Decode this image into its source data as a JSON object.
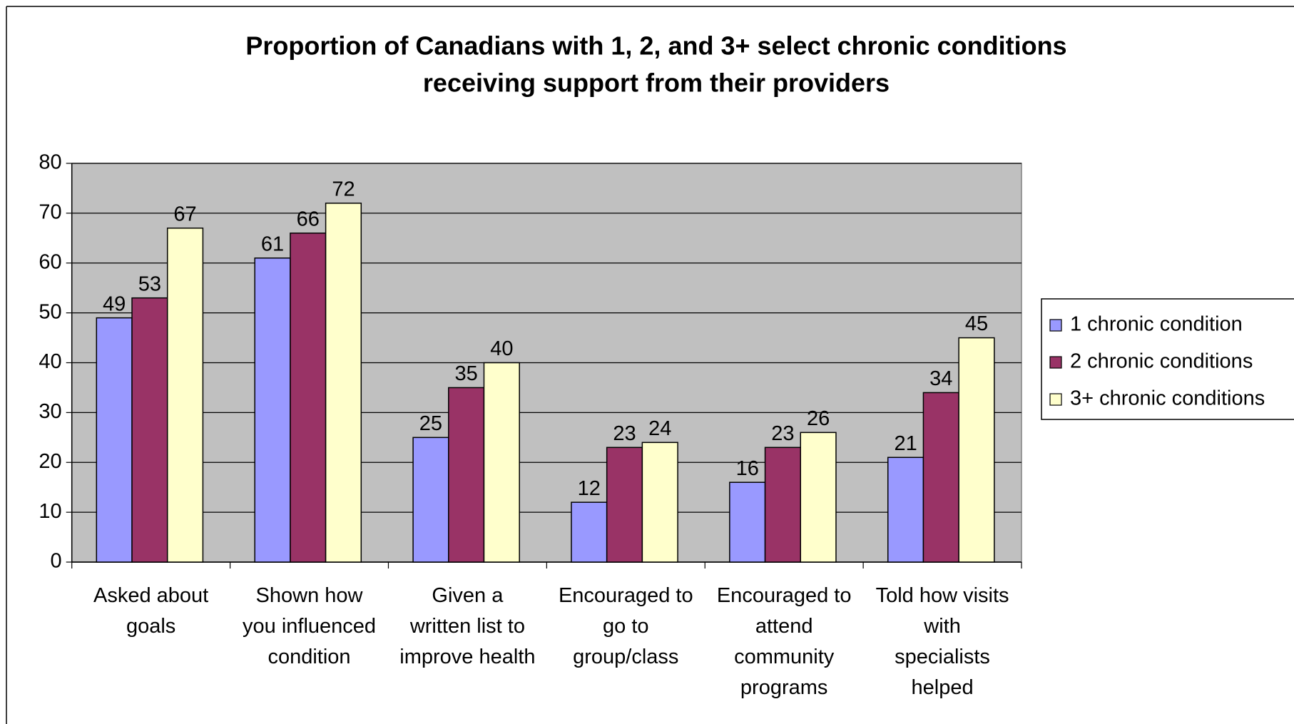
{
  "chart_data": {
    "type": "bar",
    "title": "Proportion of Canadians with 1, 2, and 3+ select chronic conditions",
    "subtitle": "receiving support from their providers",
    "categories": [
      "Asked about\ngoals",
      "Shown how\nyou influenced\ncondition",
      "Given a\nwritten list to\nimprove health",
      "Encouraged to\ngo to\ngroup/class",
      "Encouraged to\nattend\ncommunity\nprograms",
      "Told how visits\nwith\nspecialists\nhelped"
    ],
    "series": [
      {
        "name": "1 chronic condition",
        "color": "#9999ff",
        "values": [
          49,
          61,
          25,
          12,
          16,
          21
        ]
      },
      {
        "name": "2 chronic conditions",
        "color": "#993366",
        "values": [
          53,
          66,
          35,
          23,
          23,
          34
        ]
      },
      {
        "name": "3+ chronic conditions",
        "color": "#ffffcc",
        "values": [
          67,
          72,
          40,
          24,
          26,
          45
        ]
      }
    ],
    "ylim": [
      0,
      80
    ],
    "yticks": [
      0,
      10,
      20,
      30,
      40,
      50,
      60,
      70,
      80
    ],
    "grid": true,
    "legend": "right"
  }
}
